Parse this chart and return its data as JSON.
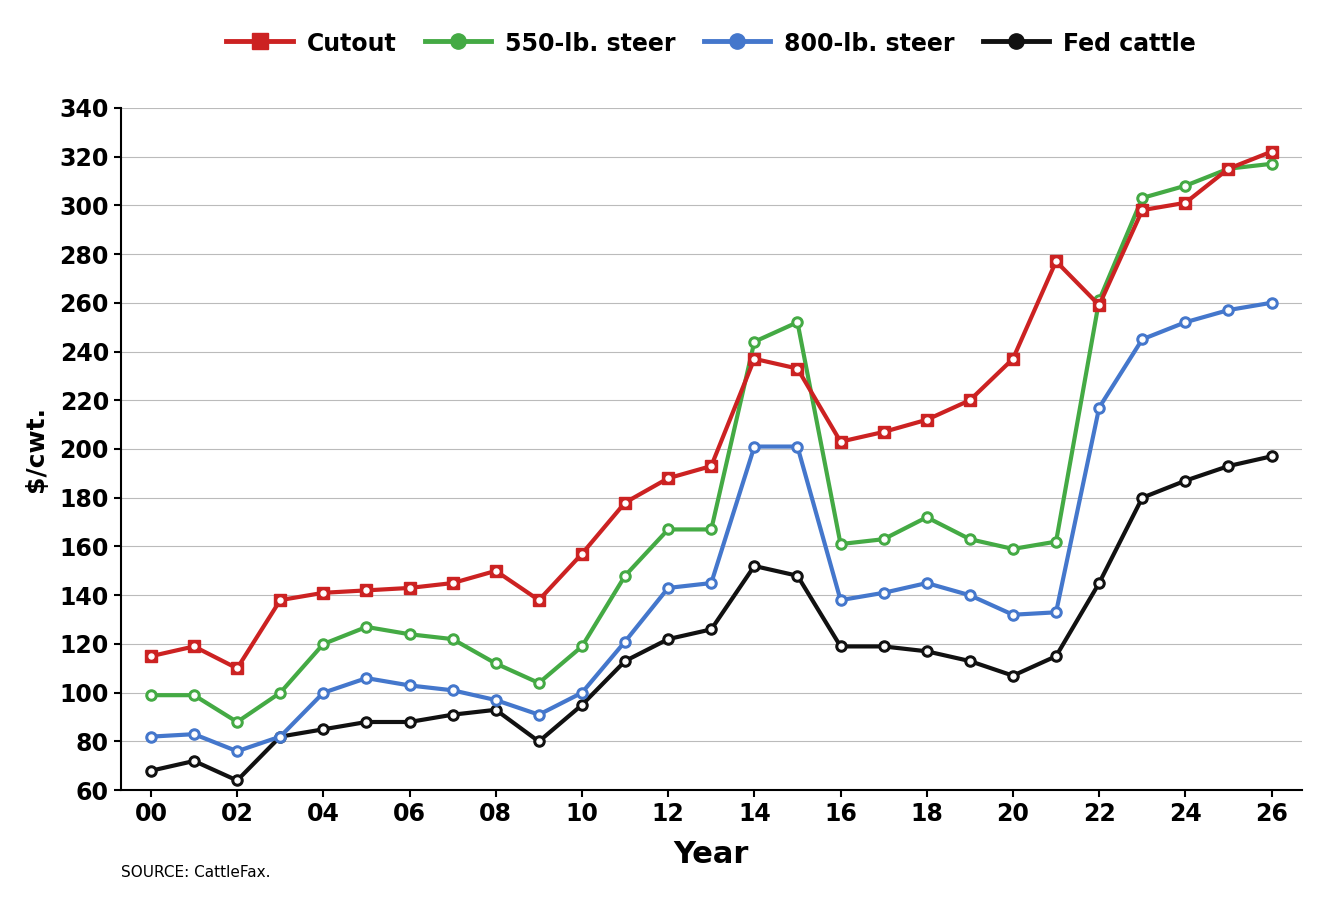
{
  "years": [
    2000,
    2001,
    2002,
    2003,
    2004,
    2005,
    2006,
    2007,
    2008,
    2009,
    2010,
    2011,
    2012,
    2013,
    2014,
    2015,
    2016,
    2017,
    2018,
    2019,
    2020,
    2021,
    2022,
    2023,
    2024,
    2025,
    2026
  ],
  "cutout": [
    115,
    119,
    110,
    138,
    141,
    142,
    143,
    145,
    150,
    138,
    157,
    178,
    188,
    193,
    237,
    233,
    203,
    207,
    212,
    220,
    237,
    277,
    259,
    298,
    301,
    315,
    322
  ],
  "steer550": [
    99,
    99,
    88,
    100,
    120,
    127,
    124,
    122,
    112,
    104,
    119,
    148,
    167,
    167,
    244,
    252,
    161,
    163,
    172,
    163,
    159,
    162,
    261,
    303,
    308,
    315,
    317
  ],
  "steer800": [
    82,
    83,
    76,
    82,
    100,
    106,
    103,
    101,
    97,
    91,
    100,
    121,
    143,
    145,
    201,
    201,
    138,
    141,
    145,
    140,
    132,
    133,
    217,
    245,
    252,
    257,
    260
  ],
  "fed_cattle": [
    68,
    72,
    64,
    82,
    85,
    88,
    88,
    91,
    93,
    80,
    95,
    113,
    122,
    126,
    152,
    148,
    119,
    119,
    117,
    113,
    107,
    115,
    145,
    180,
    187,
    193,
    197
  ],
  "cutout_color": "#cc2222",
  "steer550_color": "#44aa44",
  "steer800_color": "#4477cc",
  "fed_cattle_color": "#111111",
  "ylabel": "$/cwt.",
  "xlabel": "Year",
  "source_text": "SOURCE: CattleFax.",
  "ylim": [
    60,
    340
  ],
  "yticks": [
    60,
    80,
    100,
    120,
    140,
    160,
    180,
    200,
    220,
    240,
    260,
    280,
    300,
    320,
    340
  ],
  "xtick_labels": [
    "00",
    "02",
    "04",
    "06",
    "08",
    "10",
    "12",
    "14",
    "16",
    "18",
    "20",
    "22",
    "24",
    "26"
  ],
  "xtick_positions": [
    2000,
    2002,
    2004,
    2006,
    2008,
    2010,
    2012,
    2014,
    2016,
    2018,
    2020,
    2022,
    2024,
    2026
  ],
  "legend_labels": [
    "Cutout",
    "550-lb. steer",
    "800-lb. steer",
    "Fed cattle"
  ],
  "linewidth": 3.0,
  "markersize": 8,
  "background_color": "#ffffff",
  "grid_color": "#bbbbbb"
}
